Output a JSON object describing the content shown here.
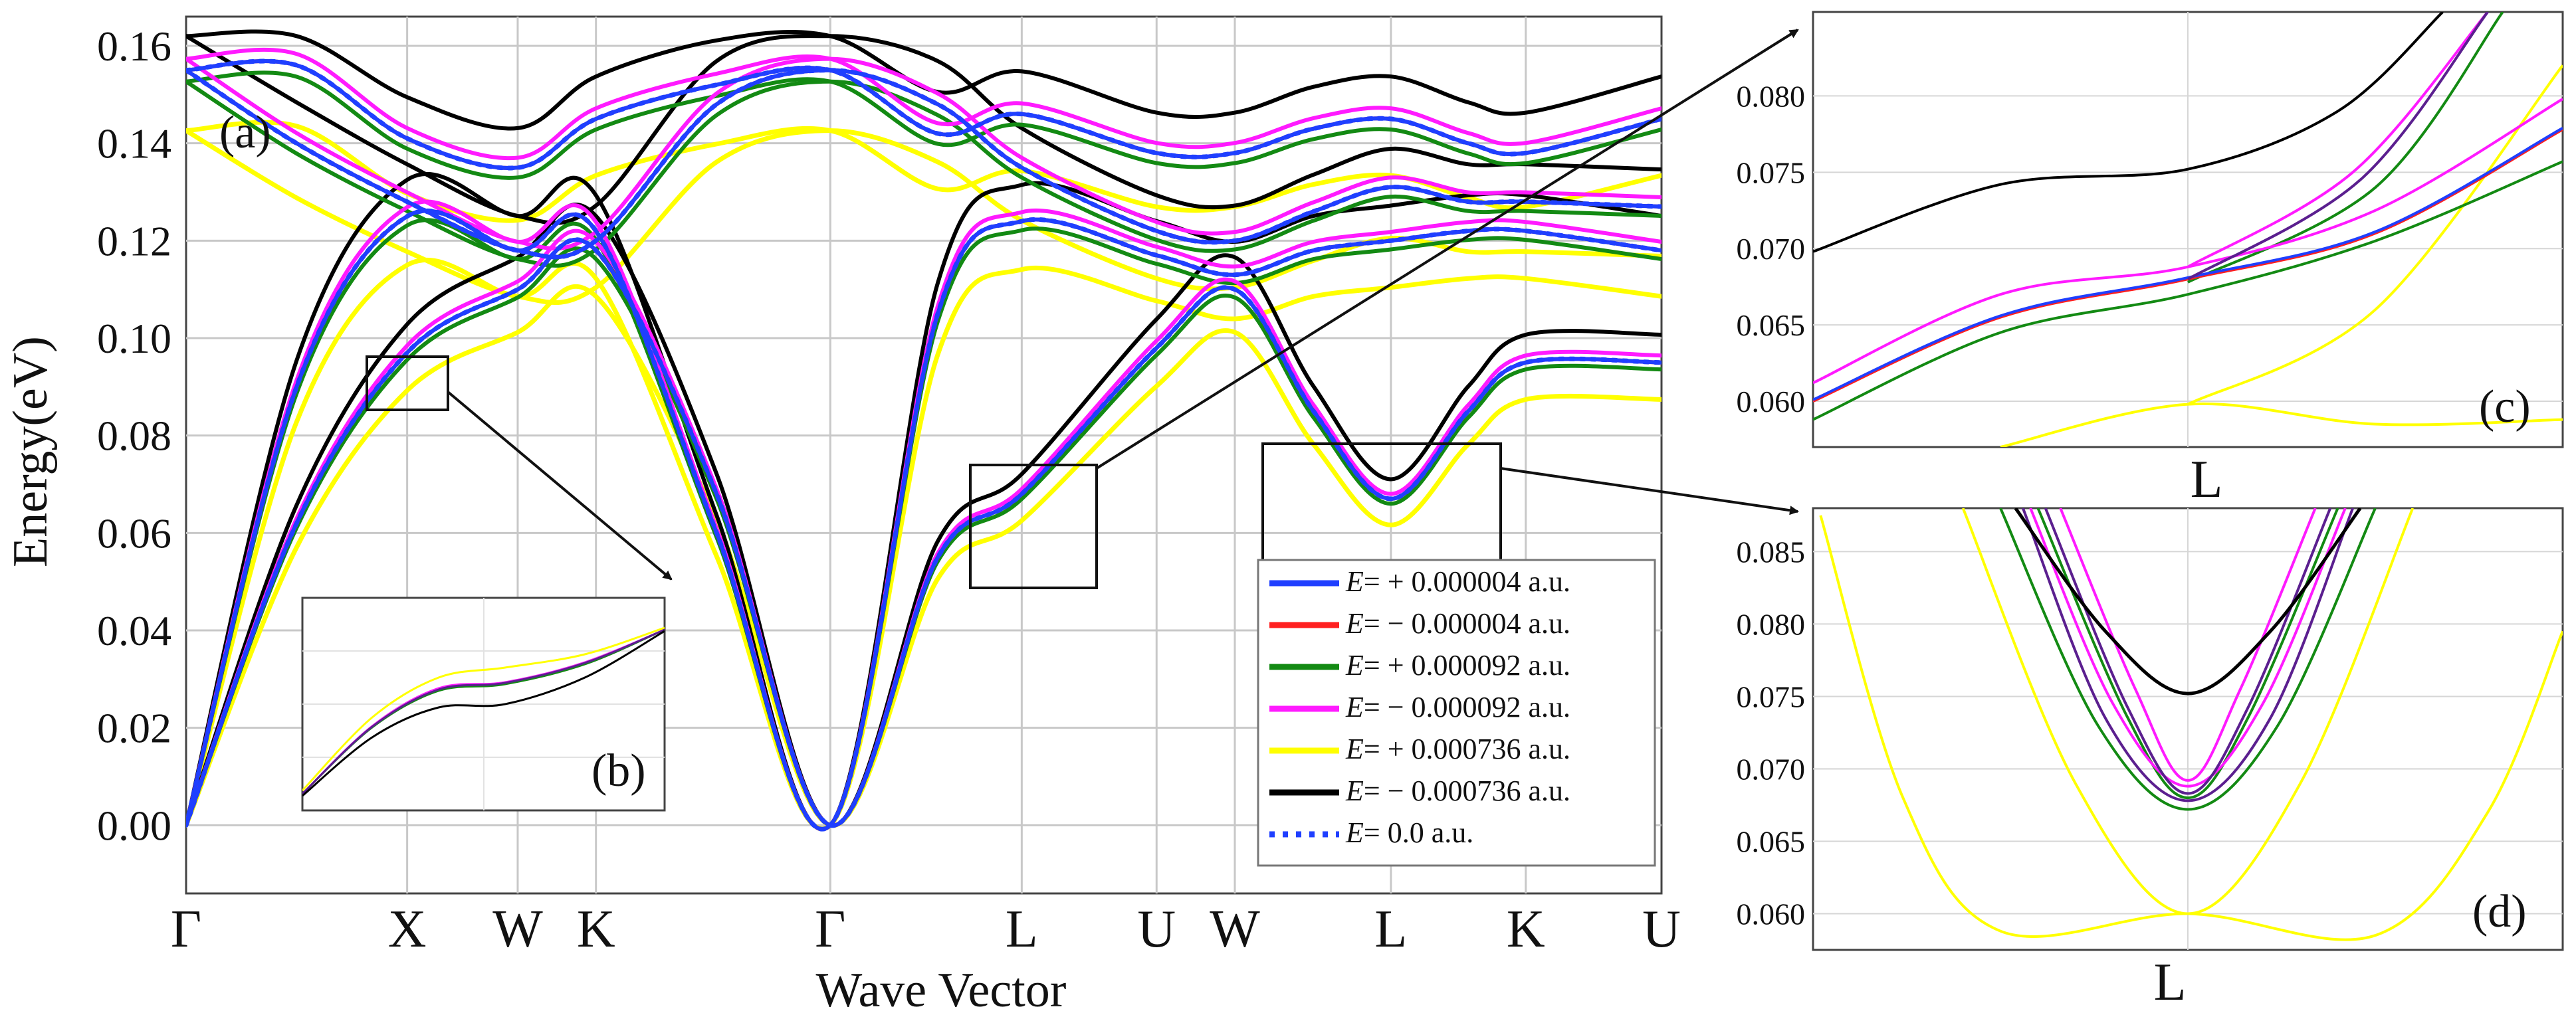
{
  "chart_data": [
    {
      "panel": "(a)",
      "type": "line",
      "title": "",
      "xlabel": "Wave Vector",
      "ylabel": "Energy(eV)",
      "ylim": [
        -0.014,
        0.166
      ],
      "yticks": [
        "0.16",
        "0.14",
        "0.12",
        "0.10",
        "0.08",
        "0.06",
        "0.04",
        "0.02",
        "0.00"
      ],
      "ytick_values": [
        0.16,
        0.14,
        0.12,
        0.1,
        0.08,
        0.06,
        0.04,
        0.02,
        0.0
      ],
      "x_points": [
        {
          "label": "Γ",
          "pos": 0.0
        },
        {
          "label": "X",
          "pos": 1.0
        },
        {
          "label": "W",
          "pos": 1.5
        },
        {
          "label": "K",
          "pos": 1.854
        },
        {
          "label": "Γ",
          "pos": 2.914
        },
        {
          "label": "L",
          "pos": 3.78
        },
        {
          "label": "U",
          "pos": 4.39
        },
        {
          "label": "W",
          "pos": 4.744
        },
        {
          "label": "L",
          "pos": 5.45
        },
        {
          "label": "K",
          "pos": 6.06
        },
        {
          "label": "U",
          "pos": 6.674
        }
      ],
      "series_style": [
        {
          "name": "E= + 0.000004 a.u.",
          "color": "#1f3fff",
          "dash": "solid"
        },
        {
          "name": "E= − 0.000004 a.u.",
          "color": "#ff2020",
          "dash": "solid"
        },
        {
          "name": "E= + 0.000092 a.u.",
          "color": "#138a13",
          "dash": "solid"
        },
        {
          "name": "E= − 0.000092 a.u.",
          "color": "#ff1aff",
          "dash": "solid"
        },
        {
          "name": "E= + 0.000736 a.u.",
          "color": "#ffff00",
          "dash": "solid"
        },
        {
          "name": "E= − 0.000736 a.u.",
          "color": "#000000",
          "dash": "solid"
        },
        {
          "name": "E= 0.0 a.u.",
          "color": "#1f3fff",
          "dash": "dotted"
        }
      ],
      "bands_reference": {
        "x": [
          0,
          0.5,
          1.0,
          1.5,
          1.854,
          2.4,
          2.914,
          3.4,
          3.78,
          4.39,
          4.744,
          5.1,
          5.45,
          5.8,
          6.06,
          6.674
        ],
        "acoustic_low": [
          0.0,
          0.062,
          0.097,
          0.11,
          0.118,
          0.068,
          0.0,
          0.055,
          0.068,
          0.098,
          0.11,
          0.085,
          0.067,
          0.085,
          0.095,
          0.095
        ],
        "acoustic_mid": [
          0.0,
          0.09,
          0.125,
          0.118,
          0.122,
          0.06,
          0.0,
          0.105,
          0.124,
          0.117,
          0.113,
          0.118,
          0.12,
          0.122,
          0.122,
          0.118
        ],
        "optical_low": [
          0.155,
          0.14,
          0.128,
          0.118,
          0.12,
          0.148,
          0.155,
          0.148,
          0.135,
          0.122,
          0.12,
          0.126,
          0.131,
          0.128,
          0.128,
          0.127
        ],
        "optical_high": [
          0.155,
          0.156,
          0.141,
          0.135,
          0.145,
          0.152,
          0.155,
          0.142,
          0.146,
          0.138,
          0.138,
          0.143,
          0.145,
          0.14,
          0.138,
          0.145
        ]
      },
      "inset_label": "(b)"
    },
    {
      "panel": "(c)",
      "type": "line",
      "xlabel": "L",
      "ylim": [
        0.057,
        0.0855
      ],
      "yticks": [
        "0.080",
        "0.075",
        "0.070",
        "0.065",
        "0.060"
      ],
      "ytick_values": [
        0.08,
        0.075,
        0.07,
        0.065,
        0.06
      ]
    },
    {
      "panel": "(d)",
      "type": "line",
      "xlabel": "L",
      "ylim": [
        0.0575,
        0.088
      ],
      "yticks": [
        "0.085",
        "0.080",
        "0.075",
        "0.070",
        "0.065",
        "0.060"
      ],
      "ytick_values": [
        0.085,
        0.08,
        0.075,
        0.07,
        0.065,
        0.06
      ]
    }
  ],
  "legend": [
    {
      "prefix": "E",
      "text": "= + 0.000004 a.u."
    },
    {
      "prefix": "E",
      "text": "= − 0.000004 a.u."
    },
    {
      "prefix": "E",
      "text": "= + 0.000092 a.u."
    },
    {
      "prefix": "E",
      "text": "= − 0.000092 a.u."
    },
    {
      "prefix": "E",
      "text": "= + 0.000736 a.u."
    },
    {
      "prefix": "E",
      "text": "= − 0.000736 a.u."
    },
    {
      "prefix": "E",
      "text": "= 0.0 a.u."
    }
  ]
}
